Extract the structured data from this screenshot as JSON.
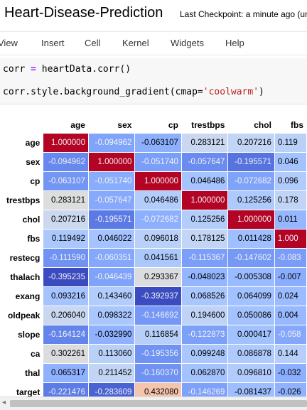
{
  "header": {
    "notebook_title": "Heart-Disease-Prediction",
    "checkpoint": "Last Checkpoint: a minute ago  (uns"
  },
  "menu": [
    "View",
    "Insert",
    "Cell",
    "Kernel",
    "Widgets",
    "Help"
  ],
  "code": {
    "line1_var": "corr",
    "line1_op": "=",
    "line1_rest": "heartData.corr()",
    "line2_prefix": "corr.style.background_gradient(cmap=",
    "line2_string": "'coolwarm'",
    "line2_suffix": ")"
  },
  "table": {
    "columns": [
      "age",
      "sex",
      "cp",
      "trestbps",
      "chol",
      "fbs"
    ],
    "rows": [
      {
        "label": "age",
        "values": [
          "1.000000",
          "-0.094962",
          "-0.063107",
          "0.283121",
          "0.207216",
          "0.119"
        ]
      },
      {
        "label": "sex",
        "values": [
          "-0.094962",
          "1.000000",
          "-0.051740",
          "-0.057647",
          "-0.195571",
          "0.046"
        ]
      },
      {
        "label": "cp",
        "values": [
          "-0.063107",
          "-0.051740",
          "1.000000",
          "0.046486",
          "-0.072682",
          "0.096"
        ]
      },
      {
        "label": "trestbps",
        "values": [
          "0.283121",
          "-0.057647",
          "0.046486",
          "1.000000",
          "0.125256",
          "0.178"
        ]
      },
      {
        "label": "chol",
        "values": [
          "0.207216",
          "-0.195571",
          "-0.072682",
          "0.125256",
          "1.000000",
          "0.011"
        ]
      },
      {
        "label": "fbs",
        "values": [
          "0.119492",
          "0.046022",
          "0.096018",
          "0.178125",
          "0.011428",
          "1.000"
        ]
      },
      {
        "label": "restecg",
        "values": [
          "-0.111590",
          "-0.060351",
          "0.041561",
          "-0.115367",
          "-0.147602",
          "-0.083"
        ]
      },
      {
        "label": "thalach",
        "values": [
          "-0.395235",
          "-0.046439",
          "0.293367",
          "-0.048023",
          "-0.005308",
          "-0.007"
        ]
      },
      {
        "label": "exang",
        "values": [
          "0.093216",
          "0.143460",
          "-0.392937",
          "0.068526",
          "0.064099",
          "0.024"
        ]
      },
      {
        "label": "oldpeak",
        "values": [
          "0.206040",
          "0.098322",
          "-0.146692",
          "0.194600",
          "0.050086",
          "0.004"
        ]
      },
      {
        "label": "slope",
        "values": [
          "-0.164124",
          "-0.032990",
          "0.116854",
          "-0.122873",
          "0.000417",
          "-0.058"
        ]
      },
      {
        "label": "ca",
        "values": [
          "0.302261",
          "0.113060",
          "-0.195356",
          "0.099248",
          "0.086878",
          "0.144"
        ]
      },
      {
        "label": "thal",
        "values": [
          "0.065317",
          "0.211452",
          "-0.160370",
          "0.062870",
          "0.096810",
          "-0.032"
        ]
      },
      {
        "label": "target",
        "values": [
          "-0.221476",
          "-0.283609",
          "0.432080",
          "-0.146269",
          "-0.081437",
          "-0.026"
        ]
      }
    ],
    "colors": [
      [
        "#b40426",
        "#81a4fb",
        "#8db0fe",
        "#c9d7f0",
        "#c3d5f4",
        "#b9d0f9"
      ],
      [
        "#6788ee",
        "#b40426",
        "#7b9ff9",
        "#6a8bef",
        "#5673e0",
        "#a3c2fe"
      ],
      [
        "#7396f5",
        "#89acfd",
        "#b40426",
        "#a5c3fe",
        "#80a3fa",
        "#b1cbfc"
      ],
      [
        "#dcdddd",
        "#86a9fc",
        "#b2ccfb",
        "#b40426",
        "#aec9fc",
        "#c0d4f5"
      ],
      [
        "#cbd8ee",
        "#5b7ae5",
        "#8caffe",
        "#b3cdfb",
        "#b40426",
        "#96b7ff"
      ],
      [
        "#abc8fd",
        "#a5c3fe",
        "#bad0f8",
        "#c3d5f4",
        "#9fbfff",
        "#b40426"
      ],
      [
        "#6f92f3",
        "#85a8fc",
        "#abc8fd",
        "#7b9ff9",
        "#7699f6",
        "#7a9df8"
      ],
      [
        "#3b4cc0",
        "#80a3fa",
        "#dadce0",
        "#94b6ff",
        "#9abbff",
        "#8badfd"
      ],
      [
        "#a5c3fe",
        "#b2ccfb",
        "#3b4cc0",
        "#a9c6fd",
        "#a2c1ff",
        "#9bbcff"
      ],
      [
        "#c9d7f0",
        "#aac7fd",
        "#7597f6",
        "#bfd3f6",
        "#a3c2fe",
        "#98b9ff"
      ],
      [
        "#6384eb",
        "#90b2fe",
        "#b7cff9",
        "#7da0f9",
        "#a2c1ff",
        "#85a8fc"
      ],
      [
        "#dbdcde",
        "#b9d0f9",
        "#6f92f3",
        "#a9c6fd",
        "#afcafc",
        "#b6cefa"
      ],
      [
        "#8fb1fe",
        "#c3d5f4",
        "#7093f3",
        "#a3c2fe",
        "#b1cbfc",
        "#8caffe"
      ],
      [
        "#5d7ce6",
        "#4a63d3",
        "#f5c4ac",
        "#7ea1fa",
        "#9ebeff",
        "#8fb1fe"
      ]
    ],
    "text_colors": [
      [
        "#f1f1f1",
        "#f1f1f1",
        "#000000",
        "#000000",
        "#000000",
        "#000000"
      ],
      [
        "#f1f1f1",
        "#f1f1f1",
        "#f1f1f1",
        "#f1f1f1",
        "#f1f1f1",
        "#000000"
      ],
      [
        "#f1f1f1",
        "#f1f1f1",
        "#f1f1f1",
        "#000000",
        "#f1f1f1",
        "#000000"
      ],
      [
        "#000000",
        "#f1f1f1",
        "#000000",
        "#f1f1f1",
        "#000000",
        "#000000"
      ],
      [
        "#000000",
        "#f1f1f1",
        "#f1f1f1",
        "#000000",
        "#f1f1f1",
        "#000000"
      ],
      [
        "#000000",
        "#000000",
        "#000000",
        "#000000",
        "#000000",
        "#f1f1f1"
      ],
      [
        "#f1f1f1",
        "#f1f1f1",
        "#000000",
        "#f1f1f1",
        "#f1f1f1",
        "#f1f1f1"
      ],
      [
        "#f1f1f1",
        "#f1f1f1",
        "#000000",
        "#000000",
        "#000000",
        "#000000"
      ],
      [
        "#000000",
        "#000000",
        "#f1f1f1",
        "#000000",
        "#000000",
        "#000000"
      ],
      [
        "#000000",
        "#000000",
        "#f1f1f1",
        "#000000",
        "#000000",
        "#000000"
      ],
      [
        "#f1f1f1",
        "#000000",
        "#000000",
        "#f1f1f1",
        "#000000",
        "#f1f1f1"
      ],
      [
        "#000000",
        "#000000",
        "#f1f1f1",
        "#000000",
        "#000000",
        "#000000"
      ],
      [
        "#000000",
        "#000000",
        "#f1f1f1",
        "#000000",
        "#000000",
        "#000000"
      ],
      [
        "#f1f1f1",
        "#f1f1f1",
        "#000000",
        "#f1f1f1",
        "#000000",
        "#000000"
      ]
    ]
  },
  "scrollbar": {
    "left_arrow": "◂"
  }
}
